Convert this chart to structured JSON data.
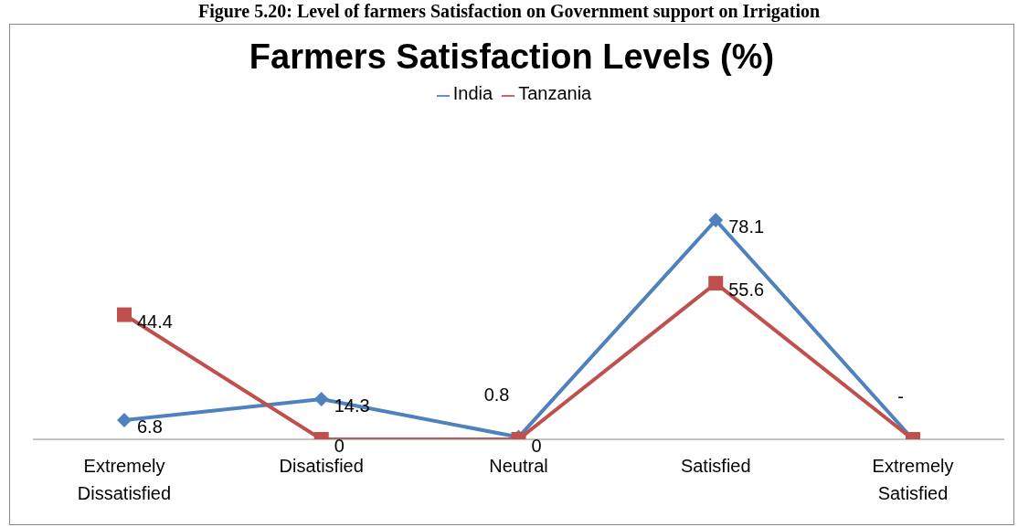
{
  "chart_data": {
    "type": "line",
    "title": "Farmers Satisfaction Levels (%)",
    "annotations": [
      "Figure 5.20: Level of farmers Satisfaction on Government support on Irrigation"
    ],
    "categories": [
      "Extremely Dissatisfied",
      "Disatisfied",
      "Neutral",
      "Satisfied",
      "Extremely Satisfied"
    ],
    "series": [
      {
        "name": "India",
        "color": "#4f81bd",
        "marker": "diamond",
        "values": [
          6.8,
          14.3,
          0.8,
          78.1,
          0
        ],
        "value_labels": [
          "6.8",
          "14.3",
          "0.8",
          "78.1",
          "-"
        ]
      },
      {
        "name": "Tanzania",
        "color": "#c0504d",
        "marker": "square",
        "values": [
          44.4,
          0,
          0,
          55.6,
          0
        ],
        "value_labels": [
          "44.4",
          "0",
          "0",
          "55.6",
          null
        ]
      }
    ],
    "legend": "top",
    "grid": false
  }
}
